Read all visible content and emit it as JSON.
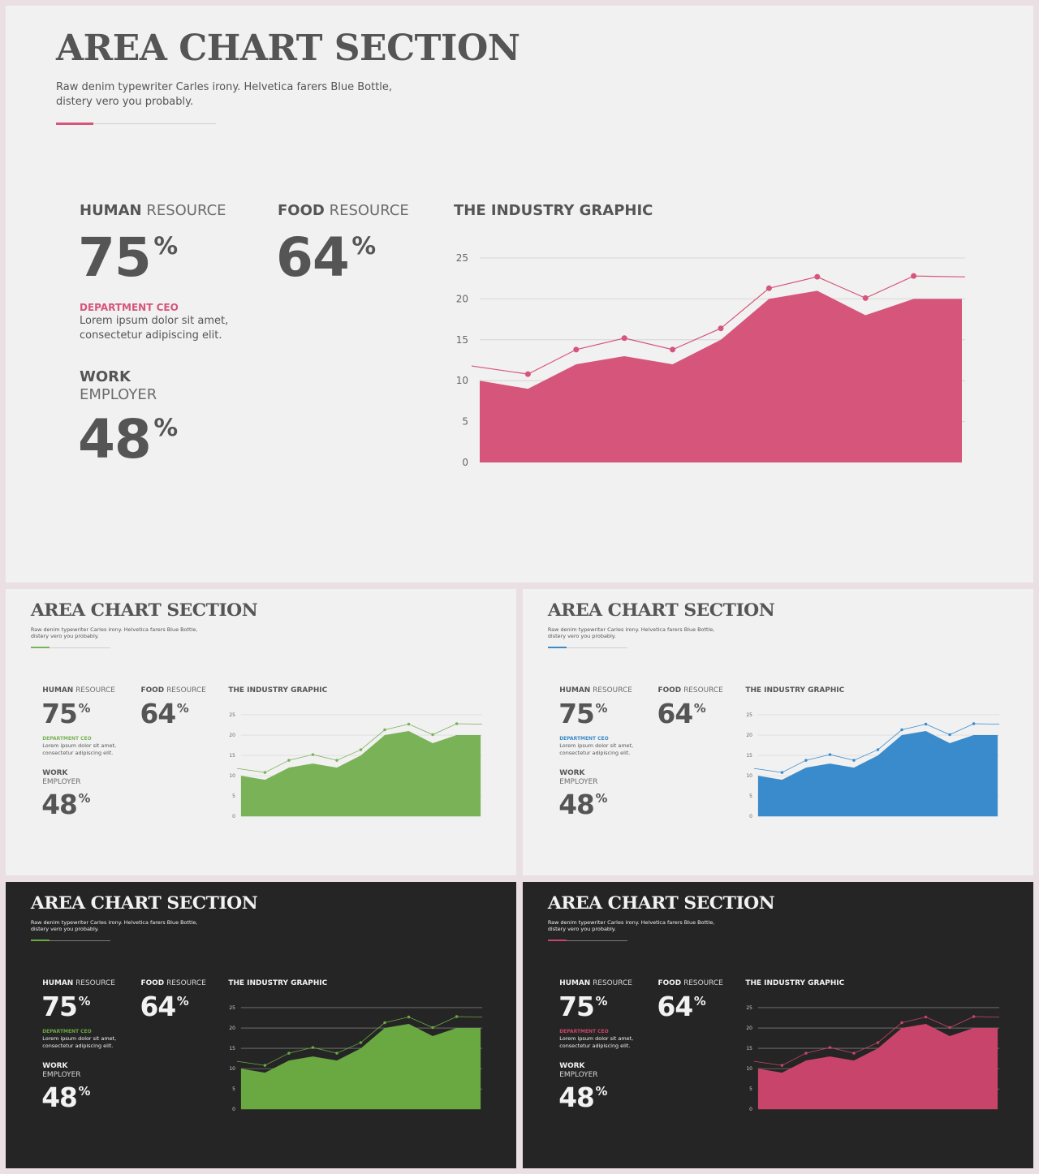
{
  "slide": {
    "title": "AREA CHART SECTION",
    "subtitle_line1": "Raw denim typewriter Carles irony. Helvetica farers Blue Bottle,",
    "subtitle_line2": "distery vero you probably.",
    "human_resource_bold": "HUMAN",
    "human_resource_thin": "RESOURCE",
    "human_resource_value": "75",
    "food_resource_bold": "FOOD",
    "food_resource_thin": "RESOURCE",
    "food_resource_value": "64",
    "percent_sign": "%",
    "department_title": "DEPARTMENT CEO",
    "department_line1": "Lorem ipsum dolor sit amet,",
    "department_line2": "consectetur adipiscing elit.",
    "work_label": "WORK",
    "employer_label": "EMPLOYER",
    "work_employer_value": "48",
    "graph_title": "THE INDUSTRY GRAPHIC"
  },
  "themes": {
    "main": {
      "accent": "#d6557b",
      "background": "#f1f1f1",
      "text": "#555555"
    },
    "green_light": {
      "accent": "#7ab257",
      "background": "#f1f1f1",
      "text": "#555555"
    },
    "blue_light": {
      "accent": "#3a8bcb",
      "background": "#f1f1f1",
      "text": "#555555"
    },
    "green_dark": {
      "accent": "#6aa842",
      "background": "#252525",
      "text": "#f2f2f2"
    },
    "pink_dark": {
      "accent": "#c9446a",
      "background": "#252525",
      "text": "#f2f2f2"
    }
  },
  "chart_data": {
    "type": "area",
    "title": "THE INDUSTRY GRAPHIC",
    "x": [
      0,
      1,
      2,
      3,
      4,
      5,
      6,
      7,
      8,
      9,
      10
    ],
    "series": [
      {
        "values": [
          10,
          9,
          12,
          13,
          12,
          15,
          20,
          21,
          18,
          20,
          20
        ]
      },
      {
        "values": [
          11.8,
          10.8,
          13.8,
          15.2,
          13.8,
          16.4,
          21.3,
          22.7,
          20.1,
          22.8,
          22.7
        ]
      }
    ],
    "yticks": [
      0,
      5,
      10,
      15,
      20,
      25
    ],
    "ylim": [
      0,
      25
    ],
    "grid": true,
    "legend": "none"
  }
}
